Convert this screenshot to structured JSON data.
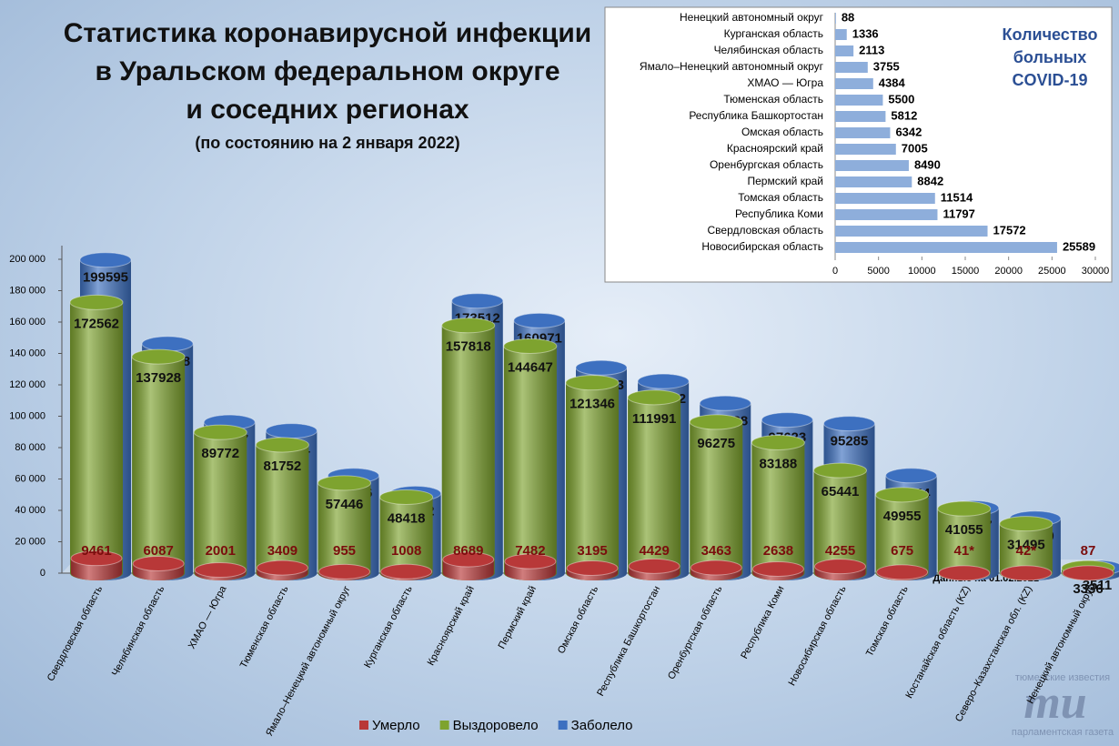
{
  "chart_data": [
    {
      "type": "bar",
      "title": [
        "Статистика коронавирусной инфекции",
        "в Уральском федеральном округе",
        "и соседних регионах"
      ],
      "subtitle": "(по состоянию на 2 января 2022)",
      "categories": [
        "Свердловская область",
        "Челябинская область",
        "ХМАО — Югра",
        "Тюменская область",
        "Ямало–Ненецкий автономный округ",
        "Курганская область",
        "Красноярский край",
        "Пермский край",
        "Омская область",
        "Республика Башкортостан",
        "Оренбургская область",
        "Республика Коми",
        "Новосибирская область",
        "Томская область",
        "Костанайская область (KZ)",
        "Северо–Казахстанская обл. (KZ)",
        "Ненецкий автономный округ"
      ],
      "series": [
        {
          "name": "Умерло",
          "color": "#b83838",
          "values": [
            9461,
            6087,
            2001,
            3409,
            955,
            1008,
            8689,
            7482,
            3195,
            4429,
            3463,
            2638,
            4255,
            675,
            41,
            42,
            87
          ],
          "value_labels": [
            "9461",
            "6087",
            "2001",
            "3409",
            "955",
            "1008",
            "8689",
            "7482",
            "3195",
            "4429",
            "3463",
            "2638",
            "4255",
            "675",
            "41*",
            "42*",
            "87"
          ]
        },
        {
          "name": "Выздоровело",
          "color": "#7ea32f",
          "values": [
            172562,
            137928,
            89772,
            81752,
            57446,
            48418,
            157818,
            144647,
            121346,
            111991,
            96275,
            83188,
            65441,
            49955,
            41055,
            31495,
            3336
          ]
        },
        {
          "name": "Заболело",
          "color": "#3d70c0",
          "values": [
            199595,
            146128,
            96157,
            90661,
            62156,
            50762,
            173512,
            160971,
            130883,
            122232,
            108228,
            97623,
            95285,
            62144,
            41487,
            34850,
            3511
          ]
        }
      ],
      "ylim": [
        0,
        200000
      ],
      "yticks": [
        0,
        {
          "value": 20000,
          "label": "20 000"
        },
        {
          "value": 40000,
          "label": "40 000"
        },
        {
          "value": 60000,
          "label": "60 000"
        },
        {
          "value": 80000,
          "label": "80 000"
        },
        {
          "value": 100000,
          "label": "100 000"
        },
        {
          "value": 120000,
          "label": "120 000"
        },
        {
          "value": 140000,
          "label": "140 000"
        },
        {
          "value": 160000,
          "label": "160 000"
        },
        {
          "value": 180000,
          "label": "180 000"
        },
        {
          "value": 200000,
          "label": "200 000"
        }
      ],
      "note": "* Данные на 01.02.2021",
      "legend": "bottom"
    },
    {
      "type": "hbar",
      "title": "Количество больных COVID-19",
      "categories": [
        "Ненецкий автономный округ",
        "Курганская область",
        "Челябинская область",
        "Ямало–Ненецкий автономный округ",
        "ХМАО — Югра",
        "Тюменская область",
        "Республика Башкортостан",
        "Омская область",
        "Красноярский край",
        "Оренбургская область",
        "Пермский край",
        "Томская область",
        "Республика Коми",
        "Свердловская область",
        "Новосибирская область"
      ],
      "values": [
        88,
        1336,
        2113,
        3755,
        4384,
        5500,
        5812,
        6342,
        7005,
        8490,
        8842,
        11514,
        11797,
        17572,
        25589
      ],
      "color": "#8eaedb",
      "xlim": [
        0,
        30000
      ],
      "xticks": [
        0,
        5000,
        10000,
        15000,
        20000,
        25000,
        30000
      ]
    }
  ],
  "logo": {
    "top": "тюменские известия",
    "mark": "mu",
    "bottom": "парламентская газета"
  }
}
